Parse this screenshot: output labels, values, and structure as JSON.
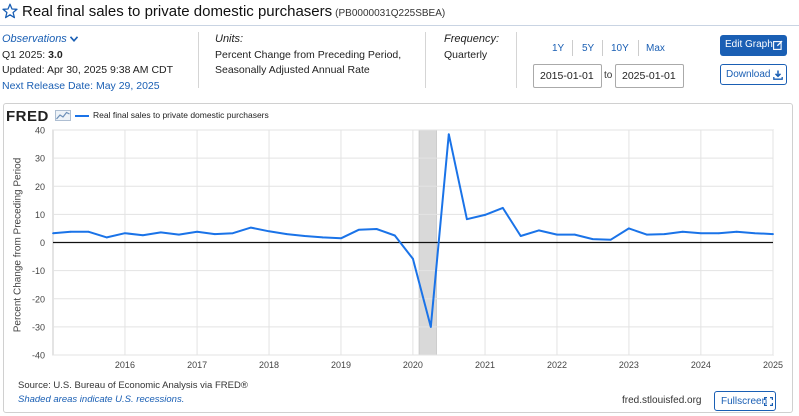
{
  "header": {
    "title": "Real final sales to private domestic purchasers",
    "series_id": "(PB0000031Q225SBEA)"
  },
  "observations": {
    "label": "Observations",
    "period_label": "Q1 2025:",
    "period_value": "3.0",
    "updated": "Updated: Apr 30, 2025 9:38 AM CDT",
    "next_release": "Next Release Date: May 29, 2025"
  },
  "units": {
    "label": "Units:",
    "line1": "Percent Change from Preceding Period,",
    "line2": "Seasonally Adjusted Annual Rate"
  },
  "frequency": {
    "label": "Frequency:",
    "value": "Quarterly"
  },
  "range": {
    "options": [
      "1Y",
      "5Y",
      "10Y",
      "Max"
    ],
    "start": "2015-01-01",
    "to": "to",
    "end": "2025-01-01"
  },
  "buttons": {
    "edit_graph": "Edit Graph",
    "download": "Download",
    "fullscreen": "Fullscreen"
  },
  "chart": {
    "logo": "FRED",
    "legend": "Real final sales to private domestic purchasers",
    "ylabel": "Percent Change from Preceding Period"
  },
  "footer": {
    "source": "Source: U.S. Bureau of Economic Analysis via FRED®",
    "shaded": "Shaded areas indicate U.S. recessions.",
    "url": "fred.stlouisfed.org"
  },
  "colors": {
    "line": "#1a73e8",
    "accent": "#1a5fb4",
    "recession": "#d9d9d9"
  },
  "chart_data": {
    "type": "line",
    "title": "",
    "xlabel": "",
    "ylabel": "Percent Change from Preceding Period",
    "ylim": [
      -40,
      40
    ],
    "yticks": [
      40,
      30,
      20,
      10,
      0,
      -10,
      -20,
      -30,
      -40
    ],
    "xticks": [
      "2016",
      "2017",
      "2018",
      "2019",
      "2020",
      "2021",
      "2022",
      "2023",
      "2024",
      "2025"
    ],
    "recession": [
      "2020-02-01",
      "2020-04-30"
    ],
    "series": [
      {
        "name": "Real final sales to private domestic purchasers",
        "x": [
          "2015-01-01",
          "2015-04-01",
          "2015-07-01",
          "2015-10-01",
          "2016-01-01",
          "2016-04-01",
          "2016-07-01",
          "2016-10-01",
          "2017-01-01",
          "2017-04-01",
          "2017-07-01",
          "2017-10-01",
          "2018-01-01",
          "2018-04-01",
          "2018-07-01",
          "2018-10-01",
          "2019-01-01",
          "2019-04-01",
          "2019-07-01",
          "2019-10-01",
          "2020-01-01",
          "2020-04-01",
          "2020-07-01",
          "2020-10-01",
          "2021-01-01",
          "2021-04-01",
          "2021-07-01",
          "2021-10-01",
          "2022-01-01",
          "2022-04-01",
          "2022-07-01",
          "2022-10-01",
          "2023-01-01",
          "2023-04-01",
          "2023-07-01",
          "2023-10-01",
          "2024-01-01",
          "2024-04-01",
          "2024-07-01",
          "2024-10-01",
          "2025-01-01"
        ],
        "values": [
          3.3,
          3.8,
          3.8,
          1.8,
          3.3,
          2.6,
          3.6,
          2.8,
          3.8,
          3.0,
          3.3,
          5.3,
          4.0,
          3.0,
          2.3,
          1.8,
          1.5,
          4.5,
          4.8,
          2.5,
          -5.8,
          -30.0,
          38.5,
          8.3,
          9.8,
          12.3,
          2.3,
          4.3,
          2.8,
          2.8,
          1.2,
          1.0,
          5.0,
          2.8,
          3.0,
          3.8,
          3.3,
          3.3,
          3.8,
          3.3,
          3.0
        ]
      }
    ]
  }
}
